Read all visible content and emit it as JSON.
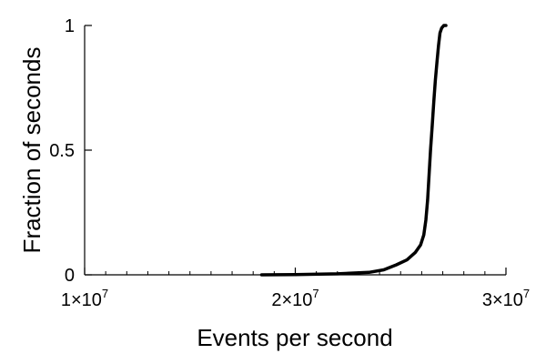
{
  "chart_data": {
    "type": "line",
    "title": "",
    "xlabel": "Events per second",
    "ylabel": "Fraction of seconds",
    "xlim": [
      10000000,
      30000000
    ],
    "ylim": [
      0,
      1
    ],
    "x_ticks": [
      {
        "value": 10000000,
        "mantissa": "1",
        "times": "×",
        "base": "10",
        "exponent": "7"
      },
      {
        "value": 20000000,
        "mantissa": "2",
        "times": "×",
        "base": "10",
        "exponent": "7"
      },
      {
        "value": 30000000,
        "mantissa": "3",
        "times": "×",
        "base": "10",
        "exponent": "7"
      }
    ],
    "y_ticks": [
      {
        "value": 0,
        "label": "0"
      },
      {
        "value": 0.5,
        "label": "0.5"
      },
      {
        "value": 1,
        "label": "1"
      }
    ],
    "grid": false,
    "legend": "none",
    "line_color": "#000000",
    "series": [
      {
        "x": [
          18400000,
          20000000,
          22000000,
          23500000,
          24200000,
          24800000,
          25300000,
          25700000,
          25950000,
          26100000,
          26200000,
          26280000,
          26350000,
          26420000,
          26500000,
          26580000,
          26650000,
          26720000,
          26800000,
          26870000,
          26950000,
          27050000,
          27150000
        ],
        "y": [
          0,
          0.001,
          0.004,
          0.01,
          0.02,
          0.04,
          0.06,
          0.09,
          0.12,
          0.16,
          0.22,
          0.3,
          0.4,
          0.5,
          0.6,
          0.7,
          0.78,
          0.85,
          0.92,
          0.97,
          0.99,
          1.0,
          1.0
        ]
      }
    ]
  }
}
